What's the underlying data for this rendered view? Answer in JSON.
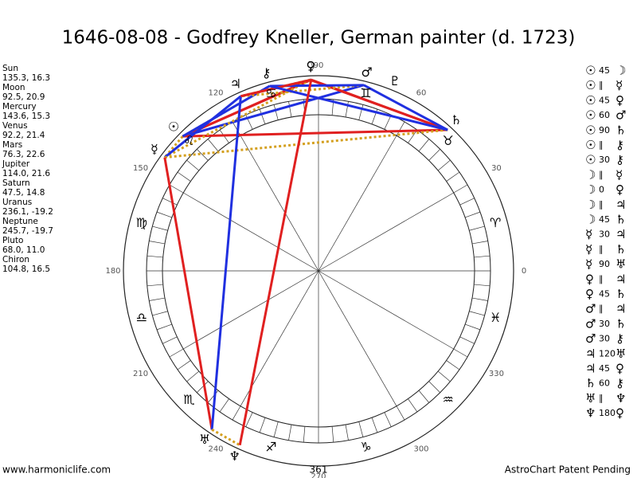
{
  "header": {
    "title": "1646-08-08 - Godfrey Kneller, German painter (d. 1723)"
  },
  "planets": [
    {
      "name": "Sun",
      "glyph": "☉",
      "position": "135.3, 16.3"
    },
    {
      "name": "Moon",
      "glyph": "☽",
      "position": "92.5, 20.9"
    },
    {
      "name": "Mercury",
      "glyph": "☿",
      "position": "143.6, 15.3"
    },
    {
      "name": "Venus",
      "glyph": "♀",
      "position": "92.2, 21.4"
    },
    {
      "name": "Mars",
      "glyph": "♂",
      "position": "76.3, 22.6"
    },
    {
      "name": "Jupiter",
      "glyph": "♃",
      "position": "114.0, 21.6"
    },
    {
      "name": "Saturn",
      "glyph": "♄",
      "position": "47.5, 14.8"
    },
    {
      "name": "Uranus",
      "glyph": "♅",
      "position": "236.1, -19.2"
    },
    {
      "name": "Neptune",
      "glyph": "♆",
      "position": "245.7, -19.7"
    },
    {
      "name": "Pluto",
      "glyph": "♇",
      "position": "68.0, 11.0"
    },
    {
      "name": "Chiron",
      "glyph": "⚷",
      "position": "104.8, 16.5"
    }
  ],
  "signs": [
    "♈",
    "♉",
    "♊",
    "♋",
    "♌",
    "♍",
    "♎",
    "♏",
    "♐",
    "♑",
    "♒",
    "♓"
  ],
  "degree_labels": [
    0,
    30,
    60,
    90,
    120,
    150,
    180,
    210,
    240,
    270,
    300,
    330
  ],
  "aspect_colors": {
    "0": "#2030e0",
    "30": "#2030e0",
    "60": "#2030e0",
    "120": "#2030e0",
    "45": "#e02020",
    "90": "#e02020",
    "180": "#e02020",
    "∥": "#d4a020"
  },
  "aspects": [
    {
      "from": "☉",
      "type": "45",
      "to": "☽"
    },
    {
      "from": "☉",
      "type": "∥",
      "to": "☿"
    },
    {
      "from": "☉",
      "type": "45",
      "to": "♀"
    },
    {
      "from": "☉",
      "type": "60",
      "to": "♂"
    },
    {
      "from": "☉",
      "type": "90",
      "to": "♄"
    },
    {
      "from": "☉",
      "type": "∥",
      "to": "⚷"
    },
    {
      "from": "☉",
      "type": "30",
      "to": "⚷"
    },
    {
      "from": "☽",
      "type": "∥",
      "to": "☿"
    },
    {
      "from": "☽",
      "type": "0",
      "to": "♀"
    },
    {
      "from": "☽",
      "type": "∥",
      "to": "♃"
    },
    {
      "from": "☽",
      "type": "45",
      "to": "♄"
    },
    {
      "from": "☿",
      "type": "30",
      "to": "♃"
    },
    {
      "from": "☿",
      "type": "∥",
      "to": "♄"
    },
    {
      "from": "☿",
      "type": "90",
      "to": "♅"
    },
    {
      "from": "♀",
      "type": "∥",
      "to": "♃"
    },
    {
      "from": "♀",
      "type": "45",
      "to": "♄"
    },
    {
      "from": "♂",
      "type": "∥",
      "to": "♃"
    },
    {
      "from": "♂",
      "type": "30",
      "to": "♄"
    },
    {
      "from": "♂",
      "type": "30",
      "to": "⚷"
    },
    {
      "from": "♃",
      "type": "120",
      "to": "♅"
    },
    {
      "from": "♃",
      "type": "45",
      "to": "♀"
    },
    {
      "from": "♄",
      "type": "60",
      "to": "⚷"
    },
    {
      "from": "♅",
      "type": "∥",
      "to": "♆"
    },
    {
      "from": "♆",
      "type": "180",
      "to": "♀"
    }
  ],
  "footer": {
    "left": "www.harmoniclife.com",
    "center": "361",
    "right": "AstroChart Patent Pending"
  }
}
